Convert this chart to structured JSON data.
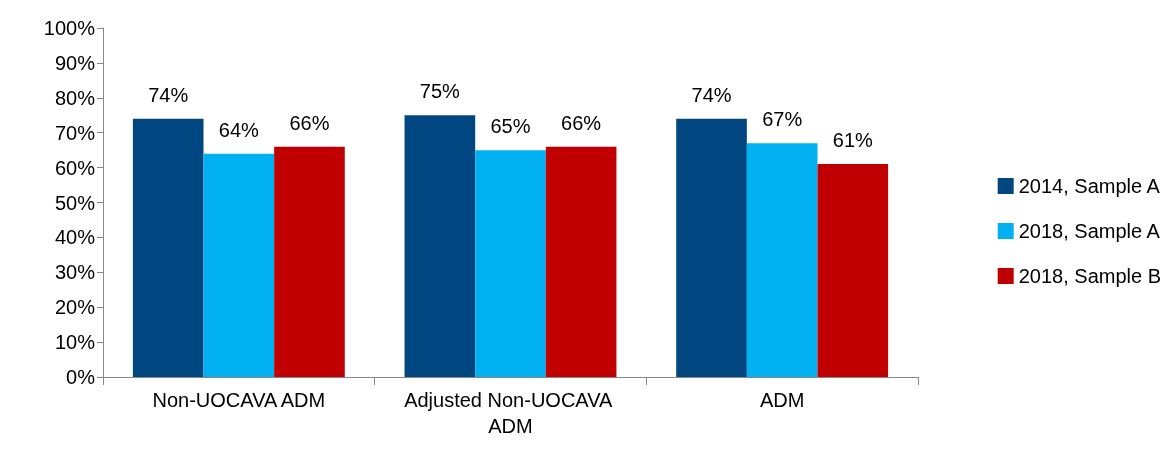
{
  "chart_data": {
    "type": "bar",
    "categories": [
      "Non-UOCAVA ADM",
      "Adjusted Non-UOCAVA ADM",
      "ADM"
    ],
    "series": [
      {
        "name": "2014, Sample A",
        "color": "#004680",
        "values": [
          74,
          75,
          74
        ],
        "value_labels": [
          "74%",
          "75%",
          "74%"
        ]
      },
      {
        "name": "2018, Sample A",
        "color": "#00b0f0",
        "values": [
          64,
          65,
          67
        ],
        "value_labels": [
          "64%",
          "65%",
          "67%"
        ]
      },
      {
        "name": "2018, Sample B",
        "color": "#c00000",
        "values": [
          66,
          66,
          61
        ],
        "value_labels": [
          "66%",
          "66%",
          "61%"
        ]
      }
    ],
    "ylim": [
      0,
      100
    ],
    "yticks": [
      {
        "value": 0,
        "label": "0%"
      },
      {
        "value": 10,
        "label": "10%"
      },
      {
        "value": 20,
        "label": "20%"
      },
      {
        "value": 30,
        "label": "30%"
      },
      {
        "value": 40,
        "label": "40%"
      },
      {
        "value": 50,
        "label": "50%"
      },
      {
        "value": 60,
        "label": "60%"
      },
      {
        "value": 70,
        "label": "70%"
      },
      {
        "value": 80,
        "label": "80%"
      },
      {
        "value": 90,
        "label": "90%"
      },
      {
        "value": 100,
        "label": "100%"
      }
    ],
    "grid": false,
    "legend": "right"
  }
}
